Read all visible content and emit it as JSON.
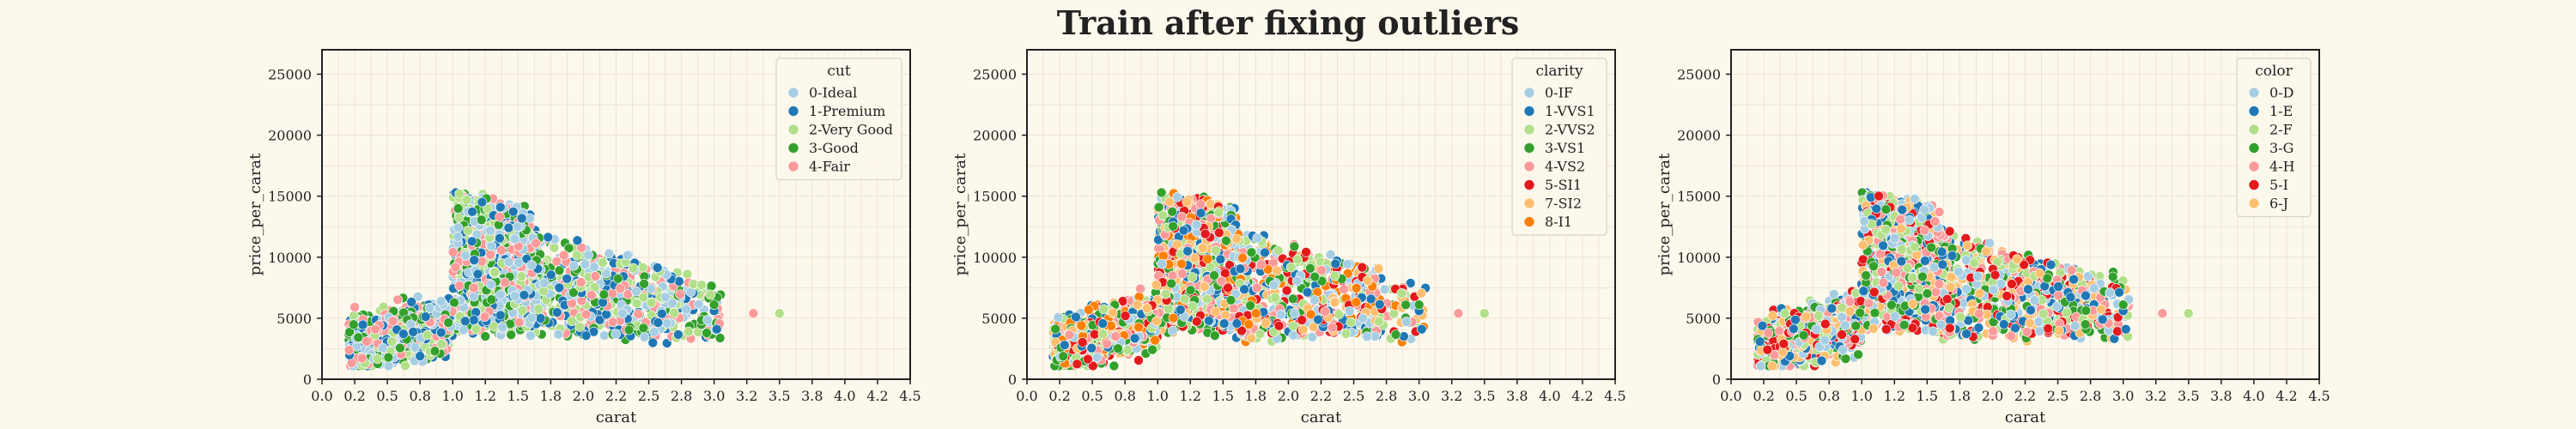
{
  "title": "Train after fixing outliers",
  "chart_data": [
    {
      "type": "scatter",
      "xlabel": "carat",
      "ylabel": "price_per_carat",
      "xlim": [
        0.0,
        4.5
      ],
      "ylim": [
        0,
        27000
      ],
      "x_ticks": [
        "0.0",
        "0.2",
        "0.5",
        "0.8",
        "1.0",
        "1.2",
        "1.5",
        "1.8",
        "2.0",
        "2.2",
        "2.5",
        "2.8",
        "3.0",
        "3.2",
        "3.5",
        "3.8",
        "4.0",
        "4.2",
        "4.5"
      ],
      "y_ticks": [
        "0",
        "5000",
        "10000",
        "15000",
        "20000",
        "25000"
      ],
      "grid": true,
      "legend_title": "cut",
      "legend_position": "top-right",
      "series": [
        {
          "name": "0-Ideal",
          "color": "#a6cee3"
        },
        {
          "name": "1-Premium",
          "color": "#1f78b4"
        },
        {
          "name": "2-Very Good",
          "color": "#b2df8a"
        },
        {
          "name": "3-Good",
          "color": "#33a02c"
        },
        {
          "name": "4-Fair",
          "color": "#fb9a99"
        }
      ]
    },
    {
      "type": "scatter",
      "xlabel": "carat",
      "ylabel": "price_per_carat",
      "xlim": [
        0.0,
        4.5
      ],
      "ylim": [
        0,
        27000
      ],
      "x_ticks": [
        "0.0",
        "0.2",
        "0.5",
        "0.8",
        "1.0",
        "1.2",
        "1.5",
        "1.8",
        "2.0",
        "2.2",
        "2.5",
        "2.8",
        "3.0",
        "3.2",
        "3.5",
        "3.8",
        "4.0",
        "4.2",
        "4.5"
      ],
      "y_ticks": [
        "0",
        "5000",
        "10000",
        "15000",
        "20000",
        "25000"
      ],
      "grid": true,
      "legend_title": "clarity",
      "legend_position": "top-right",
      "series": [
        {
          "name": "0-IF",
          "color": "#a6cee3"
        },
        {
          "name": "1-VVS1",
          "color": "#1f78b4"
        },
        {
          "name": "2-VVS2",
          "color": "#b2df8a"
        },
        {
          "name": "3-VS1",
          "color": "#33a02c"
        },
        {
          "name": "4-VS2",
          "color": "#fb9a99"
        },
        {
          "name": "5-SI1",
          "color": "#e31a1c"
        },
        {
          "name": "7-SI2",
          "color": "#fdbf6f"
        },
        {
          "name": "8-I1",
          "color": "#ff7f00"
        }
      ]
    },
    {
      "type": "scatter",
      "xlabel": "carat",
      "ylabel": "price_per_carat",
      "xlim": [
        0.0,
        4.5
      ],
      "ylim": [
        0,
        27000
      ],
      "x_ticks": [
        "0.0",
        "0.2",
        "0.5",
        "0.8",
        "1.0",
        "1.2",
        "1.5",
        "1.8",
        "2.0",
        "2.2",
        "2.5",
        "2.8",
        "3.0",
        "3.2",
        "3.5",
        "3.8",
        "4.0",
        "4.2",
        "4.5"
      ],
      "y_ticks": [
        "0",
        "5000",
        "10000",
        "15000",
        "20000",
        "25000"
      ],
      "grid": true,
      "legend_title": "color",
      "legend_position": "top-right",
      "series": [
        {
          "name": "0-D",
          "color": "#a6cee3"
        },
        {
          "name": "1-E",
          "color": "#1f78b4"
        },
        {
          "name": "2-F",
          "color": "#b2df8a"
        },
        {
          "name": "3-G",
          "color": "#33a02c"
        },
        {
          "name": "4-H",
          "color": "#fb9a99"
        },
        {
          "name": "5-I",
          "color": "#e31a1c"
        },
        {
          "name": "6-J",
          "color": "#fdbf6f"
        }
      ]
    }
  ]
}
